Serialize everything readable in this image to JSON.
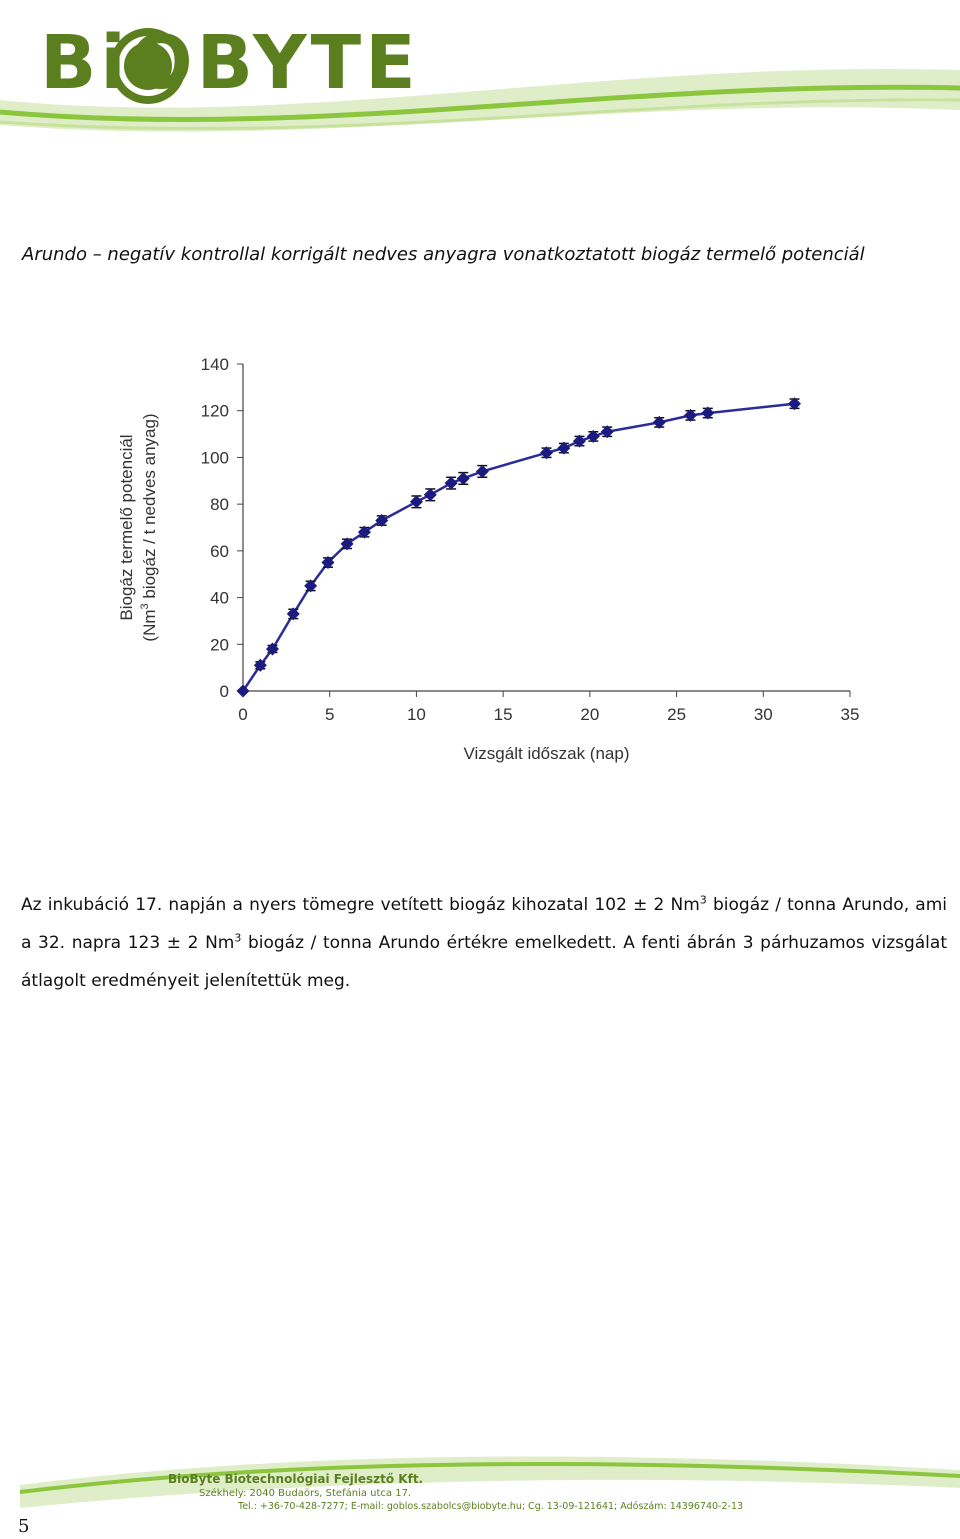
{
  "header": {
    "logo_text": "BiOBYTE",
    "brand_color": "#5b7f1f",
    "accent_color": "#8cc63f"
  },
  "caption": {
    "italic_part": "Arundo",
    "text": "– negatív kontrollal korrigált nedves anyagra vonatkoztatott biogáz termelő potenciál"
  },
  "chart_data": {
    "type": "scatter",
    "title": "",
    "xlabel": "Vizsgált időszak (nap)",
    "ylabel_line1": "Biogáz termelő potenciál",
    "ylabel_line2_pre": "(Nm",
    "ylabel_line2_sup": "3",
    "ylabel_line2_post": " biogáz / t nedves anyag)",
    "xlim": [
      0,
      35
    ],
    "ylim": [
      0,
      140
    ],
    "x_ticks": [
      0,
      5,
      10,
      15,
      20,
      25,
      30,
      35
    ],
    "y_ticks": [
      0,
      20,
      40,
      60,
      80,
      100,
      120,
      140
    ],
    "grid": false,
    "marker_color": "#1a1a80",
    "line_color": "#2b2b9a",
    "series": [
      {
        "x": [
          0,
          1,
          1.7,
          2.9,
          3.9,
          4.9,
          6,
          7,
          8,
          10,
          10.8,
          12,
          12.7,
          13.8,
          17.5,
          18.5,
          19.4,
          20.2,
          21,
          24,
          25.8,
          26.8,
          31.8
        ],
        "y": [
          0,
          11,
          18,
          33,
          45,
          55,
          63,
          68,
          73,
          81,
          84,
          89,
          91,
          94,
          102,
          104,
          107,
          109,
          111,
          115,
          118,
          119,
          123
        ],
        "err": [
          0,
          1.5,
          1.5,
          2,
          2,
          2,
          2,
          2,
          2,
          2.5,
          2.5,
          2.5,
          2.5,
          2.5,
          2,
          2,
          2,
          2,
          2,
          2,
          2,
          2,
          2
        ]
      }
    ]
  },
  "body": {
    "part1": "Az inkubáció 17. napján a nyers tömegre vetített biogáz kihozatal 102 ± 2 Nm",
    "sup1": "3",
    "part2": " biogáz / tonna Arundo, ami a 32. napra 123 ± 2 Nm",
    "sup2": "3",
    "part3": " biogáz / tonna Arundo értékre emelkedett. A fenti ábrán 3 párhuzamos vizsgálat átlagolt eredményeit jelenítettük meg."
  },
  "footer": {
    "company": "BioByte Biotechnológiai Fejlesztő Kft.",
    "address": "Székhely: 2040 Budaörs, Stefánia utca 17.",
    "contact": "Tel.: +36-70-428-7277; E-mail: goblos.szabolcs@biobyte.hu; Cg. 13-09-121641; Adószám: 14396740-2-13"
  },
  "page_number": "5"
}
